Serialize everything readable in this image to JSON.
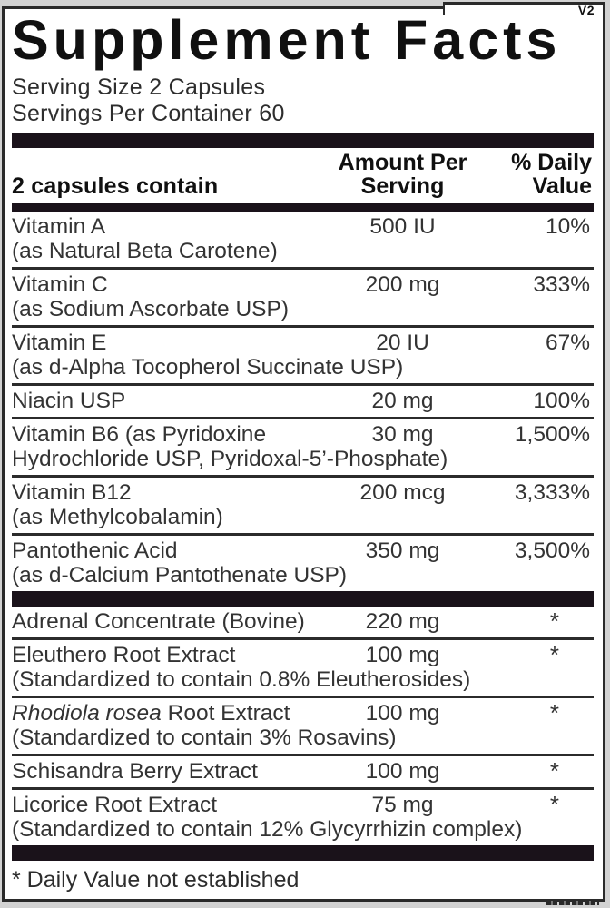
{
  "colors": {
    "bar": "#1a121a",
    "rule": "#2b2b2b",
    "border": "#2a2a2a",
    "text": "#333333",
    "heading": "#101010",
    "outside_bg": "#d2d2d2",
    "label_bg": "#ffffff"
  },
  "label": {
    "version": "V2",
    "title": "Supplement Facts",
    "serving_size": "Serving Size 2 Capsules",
    "servings_per_container": "Servings Per Container 60",
    "header": {
      "col1": "2 capsules contain",
      "col2_line1": "Amount Per",
      "col2_line2": "Serving",
      "col3_line1": "% Daily",
      "col3_line2": "Value"
    },
    "sections": [
      {
        "id": "vitamins",
        "rows": [
          {
            "name": "Vitamin A",
            "detail": "(as Natural Beta Carotene)",
            "amount": "500 IU",
            "dv": "10%"
          },
          {
            "name": "Vitamin C",
            "detail": "(as Sodium Ascorbate USP)",
            "amount": "200 mg",
            "dv": "333%"
          },
          {
            "name": "Vitamin E",
            "detail": "(as d-Alpha Tocopherol Succinate USP)",
            "amount": "20 IU",
            "dv": "67%"
          },
          {
            "name": "Niacin USP",
            "amount": "20 mg",
            "dv": "100%"
          },
          {
            "name": "Vitamin B6 (as Pyridoxine",
            "detail": "Hydrochloride USP, Pyridoxal-5’-Phosphate)",
            "amount": "30 mg",
            "dv": "1,500%"
          },
          {
            "name": "Vitamin B12",
            "detail": "(as Methylcobalamin)",
            "amount": "200 mcg",
            "dv": "3,333%"
          },
          {
            "name": "Pantothenic Acid",
            "detail": "(as d-Calcium Pantothenate USP)",
            "amount": "350 mg",
            "dv": "3,500%"
          }
        ]
      },
      {
        "id": "botanicals",
        "rows": [
          {
            "name": "Adrenal Concentrate (Bovine)",
            "amount": "220 mg",
            "dv": "*"
          },
          {
            "name": "Eleuthero Root Extract",
            "detail": "(Standardized to contain 0.8% Eleutherosides)",
            "amount": "100 mg",
            "dv": "*"
          },
          {
            "name_italic": "Rhodiola rosea",
            "name": " Root Extract",
            "detail": "(Standardized to contain 3% Rosavins)",
            "amount": "100 mg",
            "dv": "*"
          },
          {
            "name": "Schisandra Berry Extract",
            "amount": "100 mg",
            "dv": "*"
          },
          {
            "name": "Licorice Root Extract",
            "detail": "(Standardized to contain 12% Glycyrrhizin complex)",
            "amount": "75 mg",
            "dv": "*"
          }
        ]
      }
    ],
    "footnote": "* Daily Value not established"
  }
}
